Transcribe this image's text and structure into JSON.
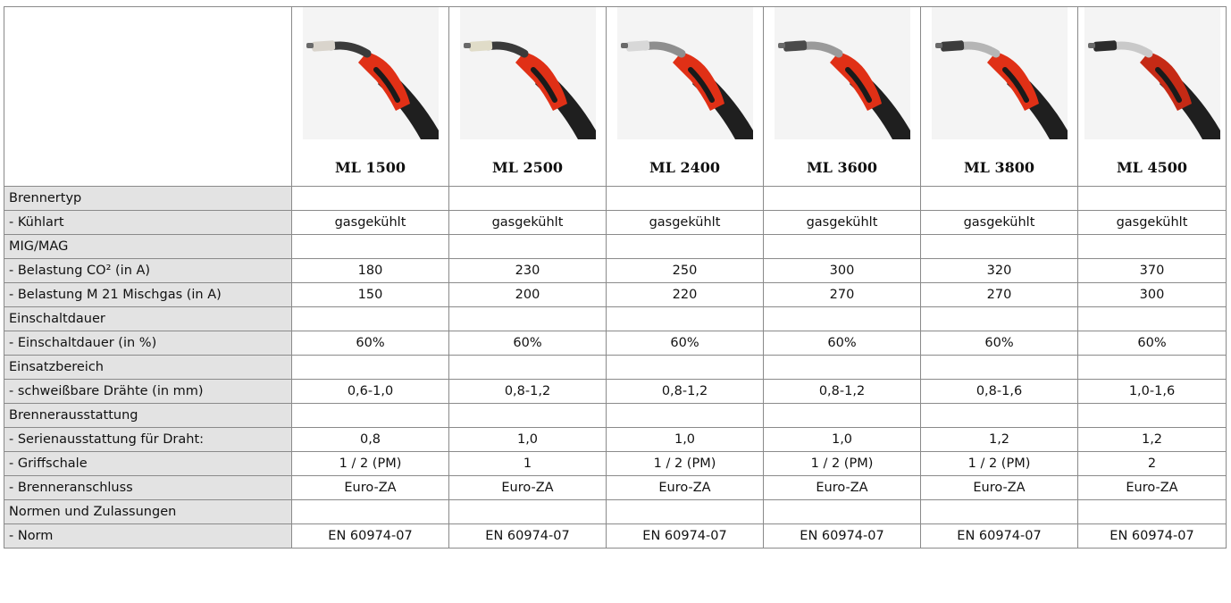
{
  "products": [
    {
      "name": "ML 1500",
      "torch": {
        "accent": "#e03016",
        "neck": "#3a3a3a",
        "tip": "#d9d4cc"
      }
    },
    {
      "name": "ML 2500",
      "torch": {
        "accent": "#e03016",
        "neck": "#3a3a3a",
        "tip": "#e0dcc8"
      }
    },
    {
      "name": "ML 2400",
      "torch": {
        "accent": "#e03016",
        "neck": "#8e8e8e",
        "tip": "#d8d8d8"
      }
    },
    {
      "name": "ML 3600",
      "torch": {
        "accent": "#e03016",
        "neck": "#9a9a9a",
        "tip": "#4a4a4a"
      }
    },
    {
      "name": "ML 3800",
      "torch": {
        "accent": "#e03016",
        "neck": "#b5b5b5",
        "tip": "#3c3c3c"
      }
    },
    {
      "name": "ML 4500",
      "torch": {
        "accent": "#c52a15",
        "neck": "#c9c9c9",
        "tip": "#2c2c2c"
      }
    }
  ],
  "rows": [
    {
      "label": "Brennertyp",
      "values": [
        "",
        "",
        "",
        "",
        "",
        ""
      ]
    },
    {
      "label": "- Kühlart",
      "values": [
        "gasgekühlt",
        "gasgekühlt",
        "gasgekühlt",
        "gasgekühlt",
        "gasgekühlt",
        "gasgekühlt"
      ]
    },
    {
      "label": "MIG/MAG",
      "values": [
        "",
        "",
        "",
        "",
        "",
        ""
      ]
    },
    {
      "label": "- Belastung CO² (in A)",
      "values": [
        "180",
        "230",
        "250",
        "300",
        "320",
        "370"
      ]
    },
    {
      "label": "- Belastung M 21 Mischgas (in A)",
      "values": [
        "150",
        "200",
        "220",
        "270",
        "270",
        "300"
      ]
    },
    {
      "label": "Einschaltdauer",
      "values": [
        "",
        "",
        "",
        "",
        "",
        ""
      ]
    },
    {
      "label": "- Einschaltdauer (in %)",
      "values": [
        "60%",
        "60%",
        "60%",
        "60%",
        "60%",
        "60%"
      ]
    },
    {
      "label": "Einsatzbereich",
      "values": [
        "",
        "",
        "",
        "",
        "",
        ""
      ]
    },
    {
      "label": "- schweißbare Drähte (in mm)",
      "values": [
        "0,6-1,0",
        "0,8-1,2",
        "0,8-1,2",
        "0,8-1,2",
        "0,8-1,6",
        "1,0-1,6"
      ]
    },
    {
      "label": "Brennerausstattung",
      "values": [
        "",
        "",
        "",
        "",
        "",
        ""
      ]
    },
    {
      "label": "- Serienausstattung für Draht:",
      "values": [
        "0,8",
        "1,0",
        "1,0",
        "1,0",
        "1,2",
        "1,2"
      ]
    },
    {
      "label": "- Griffschale",
      "values": [
        "1 / 2 (PM)",
        "1",
        "1 / 2 (PM)",
        "1 / 2 (PM)",
        "1 / 2 (PM)",
        "2"
      ]
    },
    {
      "label": "- Brenneranschluss",
      "values": [
        "Euro-ZA",
        "Euro-ZA",
        "Euro-ZA",
        "Euro-ZA",
        "Euro-ZA",
        "Euro-ZA"
      ]
    },
    {
      "label": "Normen und Zulassungen",
      "values": [
        "",
        "",
        "",
        "",
        "",
        ""
      ]
    },
    {
      "label": "-  Norm",
      "values": [
        "EN 60974-07",
        "EN 60974-07",
        "EN 60974-07",
        "EN 60974-07",
        "EN 60974-07",
        "EN 60974-07"
      ]
    }
  ]
}
